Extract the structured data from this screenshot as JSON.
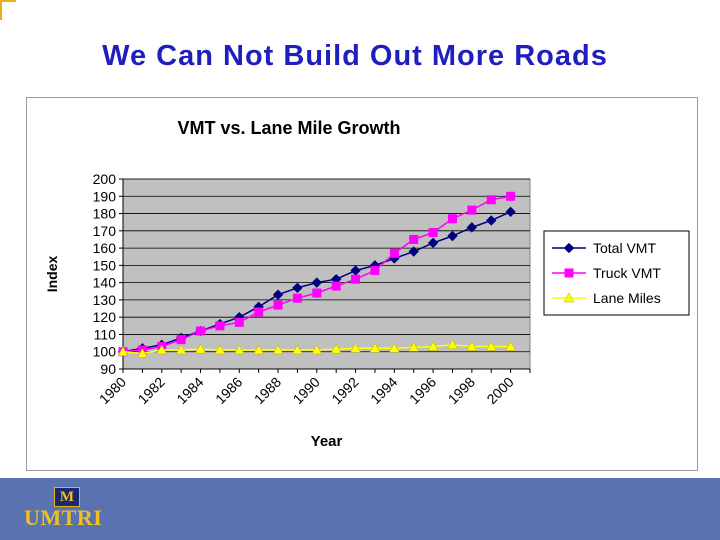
{
  "slide": {
    "title": "We Can Not Build Out More Roads",
    "logo_mark": "M",
    "logo_text": "UMTRI"
  },
  "colors": {
    "title": "#1f1fbf",
    "plot_bg": "#c0c0c0",
    "total_vmt": "#000080",
    "truck_vmt": "#ff00ff",
    "lane_miles": "#ffff00",
    "footer": "#5a72b0",
    "logo": "#f0c020"
  },
  "chart_data": {
    "type": "line",
    "title": "VMT vs. Lane Mile Growth",
    "xlabel": "Year",
    "ylabel": "Index",
    "ylim": [
      90,
      200
    ],
    "yticks": [
      90,
      100,
      110,
      120,
      130,
      140,
      150,
      160,
      170,
      180,
      190,
      200
    ],
    "x": [
      1980,
      1981,
      1982,
      1983,
      1984,
      1985,
      1986,
      1987,
      1988,
      1989,
      1990,
      1991,
      1992,
      1993,
      1994,
      1995,
      1996,
      1997,
      1998,
      1999,
      2000,
      2001
    ],
    "xtick_labels": [
      "1980",
      "1982",
      "1984",
      "1986",
      "1988",
      "1990",
      "1992",
      "1994",
      "1996",
      "1998",
      "2000"
    ],
    "grid": true,
    "legend_position": "right",
    "series": [
      {
        "name": "Total VMT",
        "marker": "diamond",
        "color": "#000080",
        "values": [
          100,
          102,
          104,
          108,
          112,
          116,
          120,
          126,
          133,
          137,
          140,
          142,
          147,
          150,
          154,
          158,
          163,
          167,
          172,
          176,
          181,
          null
        ]
      },
      {
        "name": "Truck VMT",
        "marker": "square",
        "color": "#ff00ff",
        "values": [
          100,
          101,
          103,
          107,
          112,
          115,
          117,
          123,
          127,
          131,
          134,
          138,
          142,
          147,
          157,
          165,
          169,
          177,
          182,
          188,
          190,
          null
        ]
      },
      {
        "name": "Lane Miles",
        "marker": "triangle",
        "color": "#ffff00",
        "values": [
          100,
          99,
          101,
          101,
          101.5,
          101,
          101,
          101,
          101,
          101,
          101,
          101.5,
          102,
          102,
          102,
          102.5,
          103,
          104,
          103,
          103,
          103,
          null
        ]
      }
    ]
  }
}
